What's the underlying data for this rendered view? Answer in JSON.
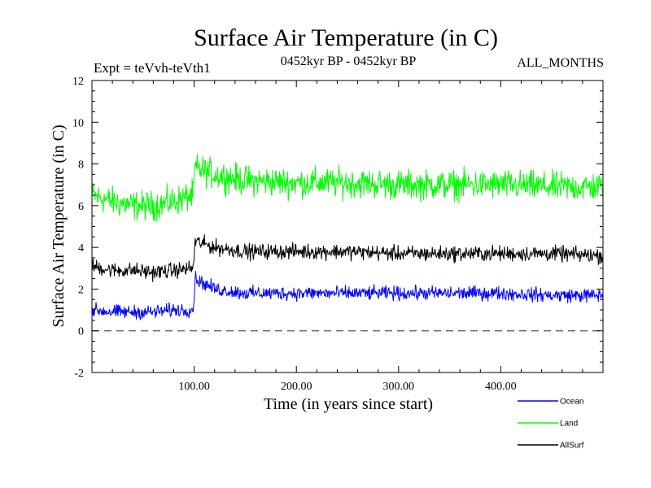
{
  "header": {
    "title": "Surface Air Temperature (in C)",
    "expt": "Expt = teVvh-teVth1",
    "period": "0452kyr BP - 0452kyr BP",
    "months": "ALL_MONTHS"
  },
  "chart_data": {
    "type": "line",
    "xlabel": "Time (in years since start)",
    "ylabel": "Surface Air Temperature (in C)",
    "xlim": [
      0,
      500
    ],
    "ylim": [
      -2,
      12
    ],
    "x_ticks": [
      100,
      200,
      300,
      400
    ],
    "x_tick_labels": [
      "100.00",
      "200.00",
      "300.00",
      "400.00"
    ],
    "y_ticks": [
      -2,
      0,
      2,
      4,
      6,
      8,
      10,
      12
    ],
    "y_tick_labels": [
      "-2",
      "0",
      "2",
      "4",
      "6",
      "8",
      "10",
      "12"
    ],
    "reference_line": 0,
    "grid": false,
    "legend_position": "bottom-right, below plot",
    "series": [
      {
        "name": "Ocean",
        "color": "#0000ff",
        "x": [
          0,
          20,
          40,
          60,
          80,
          99,
          101,
          120,
          150,
          200,
          250,
          300,
          350,
          400,
          450,
          500
        ],
        "y": [
          1.0,
          0.9,
          0.9,
          0.9,
          1.0,
          1.0,
          2.5,
          2.0,
          1.8,
          1.8,
          1.8,
          1.8,
          1.8,
          1.8,
          1.7,
          1.7
        ]
      },
      {
        "name": "Land",
        "color": "#00ff00",
        "x": [
          0,
          20,
          40,
          60,
          80,
          99,
          101,
          120,
          150,
          200,
          250,
          300,
          350,
          400,
          450,
          500
        ],
        "y": [
          6.5,
          6.2,
          6.0,
          6.0,
          6.2,
          6.5,
          7.8,
          7.5,
          7.2,
          7.1,
          7.1,
          7.0,
          7.0,
          7.0,
          6.9,
          6.9
        ]
      },
      {
        "name": "AllSurf",
        "color": "#000000",
        "x": [
          0,
          20,
          40,
          60,
          80,
          99,
          101,
          120,
          150,
          200,
          250,
          300,
          350,
          400,
          450,
          500
        ],
        "y": [
          3.1,
          2.9,
          2.9,
          2.8,
          2.9,
          3.0,
          4.3,
          4.0,
          3.8,
          3.8,
          3.8,
          3.7,
          3.7,
          3.7,
          3.7,
          3.6
        ]
      }
    ],
    "noise_amplitude": [
      0.5,
      1.05,
      0.55
    ]
  }
}
